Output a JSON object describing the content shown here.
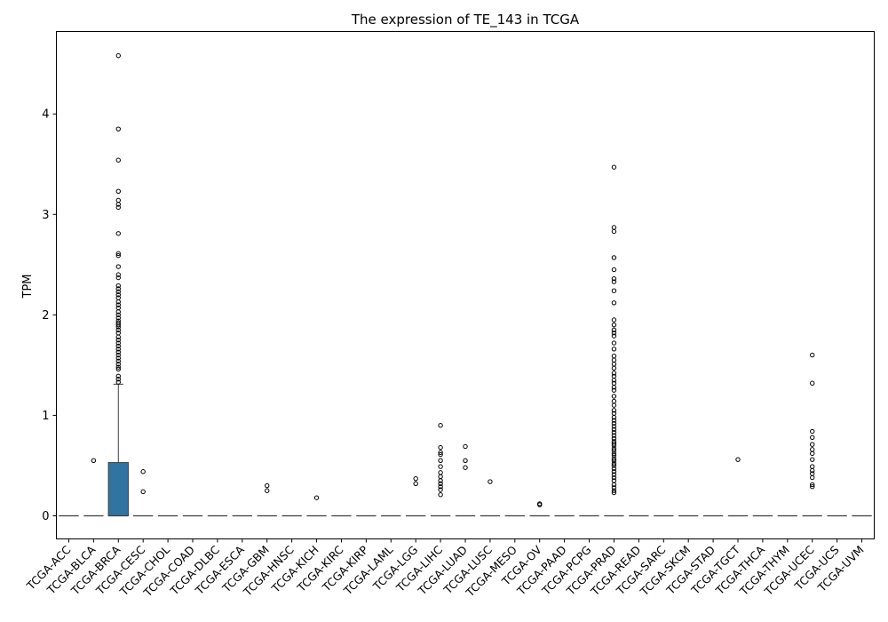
{
  "chart_data": {
    "type": "box",
    "title": "The expression of TE_143 in TCGA",
    "xlabel": "",
    "ylabel": "TPM",
    "ylim": [
      -0.23,
      4.82
    ],
    "yticks": [
      0,
      1,
      2,
      3,
      4
    ],
    "grid": false,
    "box_color": "#3274a1",
    "categories": [
      "TCGA-ACC",
      "TCGA-BLCA",
      "TCGA-BRCA",
      "TCGA-CESC",
      "TCGA-CHOL",
      "TCGA-COAD",
      "TCGA-DLBC",
      "TCGA-ESCA",
      "TCGA-GBM",
      "TCGA-HNSC",
      "TCGA-KICH",
      "TCGA-KIRC",
      "TCGA-KIRP",
      "TCGA-LAML",
      "TCGA-LGG",
      "TCGA-LIHC",
      "TCGA-LUAD",
      "TCGA-LUSC",
      "TCGA-MESO",
      "TCGA-OV",
      "TCGA-PAAD",
      "TCGA-PCPG",
      "TCGA-PRAD",
      "TCGA-READ",
      "TCGA-SARC",
      "TCGA-SKCM",
      "TCGA-STAD",
      "TCGA-TGCT",
      "TCGA-THCA",
      "TCGA-THYM",
      "TCGA-UCEC",
      "TCGA-UCS",
      "TCGA-UVM"
    ],
    "boxes": [
      {
        "q1": 0,
        "median": 0,
        "q3": 0,
        "whisker_low": 0,
        "whisker_high": 0,
        "outliers": []
      },
      {
        "q1": 0,
        "median": 0,
        "q3": 0,
        "whisker_low": 0,
        "whisker_high": 0,
        "outliers": [
          0.55
        ]
      },
      {
        "q1": 0,
        "median": 0,
        "q3": 0.53,
        "whisker_low": 0,
        "whisker_high": 1.31,
        "outliers": [
          4.58,
          3.85,
          3.54,
          3.23,
          3.14,
          3.1,
          3.07,
          2.81,
          2.61,
          2.59,
          2.48,
          2.4,
          2.37,
          2.29,
          2.26,
          2.23,
          2.2,
          2.17,
          2.13,
          2.1,
          2.07,
          2.03,
          2.0,
          1.97,
          1.94,
          1.92,
          1.9,
          1.88,
          1.85,
          1.82,
          1.78,
          1.75,
          1.72,
          1.69,
          1.66,
          1.63,
          1.6,
          1.57,
          1.54,
          1.51,
          1.48,
          1.46,
          1.39,
          1.36,
          1.33
        ]
      },
      {
        "q1": 0,
        "median": 0,
        "q3": 0,
        "whisker_low": 0,
        "whisker_high": 0,
        "outliers": [
          0.44,
          0.24
        ]
      },
      {
        "q1": 0,
        "median": 0,
        "q3": 0,
        "whisker_low": 0,
        "whisker_high": 0,
        "outliers": []
      },
      {
        "q1": 0,
        "median": 0,
        "q3": 0,
        "whisker_low": 0,
        "whisker_high": 0,
        "outliers": []
      },
      {
        "q1": 0,
        "median": 0,
        "q3": 0,
        "whisker_low": 0,
        "whisker_high": 0,
        "outliers": []
      },
      {
        "q1": 0,
        "median": 0,
        "q3": 0,
        "whisker_low": 0,
        "whisker_high": 0,
        "outliers": []
      },
      {
        "q1": 0,
        "median": 0,
        "q3": 0,
        "whisker_low": 0,
        "whisker_high": 0,
        "outliers": [
          0.3,
          0.25
        ]
      },
      {
        "q1": 0,
        "median": 0,
        "q3": 0,
        "whisker_low": 0,
        "whisker_high": 0,
        "outliers": []
      },
      {
        "q1": 0,
        "median": 0,
        "q3": 0,
        "whisker_low": 0,
        "whisker_high": 0,
        "outliers": [
          0.18
        ]
      },
      {
        "q1": 0,
        "median": 0,
        "q3": 0,
        "whisker_low": 0,
        "whisker_high": 0,
        "outliers": []
      },
      {
        "q1": 0,
        "median": 0,
        "q3": 0,
        "whisker_low": 0,
        "whisker_high": 0,
        "outliers": []
      },
      {
        "q1": 0,
        "median": 0,
        "q3": 0,
        "whisker_low": 0,
        "whisker_high": 0,
        "outliers": []
      },
      {
        "q1": 0,
        "median": 0,
        "q3": 0,
        "whisker_low": 0,
        "whisker_high": 0,
        "outliers": [
          0.37,
          0.32
        ]
      },
      {
        "q1": 0,
        "median": 0,
        "q3": 0,
        "whisker_low": 0,
        "whisker_high": 0,
        "outliers": [
          0.9,
          0.68,
          0.63,
          0.61,
          0.55,
          0.49,
          0.43,
          0.39,
          0.35,
          0.32,
          0.29,
          0.26,
          0.21
        ]
      },
      {
        "q1": 0,
        "median": 0,
        "q3": 0,
        "whisker_low": 0,
        "whisker_high": 0,
        "outliers": [
          0.69,
          0.55,
          0.48
        ]
      },
      {
        "q1": 0,
        "median": 0,
        "q3": 0,
        "whisker_low": 0,
        "whisker_high": 0,
        "outliers": [
          0.34
        ]
      },
      {
        "q1": 0,
        "median": 0,
        "q3": 0,
        "whisker_low": 0,
        "whisker_high": 0,
        "outliers": []
      },
      {
        "q1": 0,
        "median": 0,
        "q3": 0,
        "whisker_low": 0,
        "whisker_high": 0,
        "outliers": [
          0.12,
          0.11
        ]
      },
      {
        "q1": 0,
        "median": 0,
        "q3": 0,
        "whisker_low": 0,
        "whisker_high": 0,
        "outliers": []
      },
      {
        "q1": 0,
        "median": 0,
        "q3": 0,
        "whisker_low": 0,
        "whisker_high": 0,
        "outliers": []
      },
      {
        "q1": 0,
        "median": 0,
        "q3": 0,
        "whisker_low": 0,
        "whisker_high": 0,
        "outliers": [
          3.47,
          2.87,
          2.83,
          2.57,
          2.45,
          2.36,
          2.33,
          2.24,
          2.12,
          1.95,
          1.9,
          1.85,
          1.82,
          1.79,
          1.72,
          1.66,
          1.59,
          1.55,
          1.51,
          1.47,
          1.42,
          1.39,
          1.35,
          1.32,
          1.28,
          1.25,
          1.19,
          1.14,
          1.1,
          1.05,
          1.02,
          0.98,
          0.95,
          0.92,
          0.89,
          0.86,
          0.83,
          0.8,
          0.77,
          0.74,
          0.72,
          0.7,
          0.67,
          0.65,
          0.62,
          0.6,
          0.57,
          0.55,
          0.52,
          0.5,
          0.47,
          0.44,
          0.41,
          0.38,
          0.35,
          0.31,
          0.28,
          0.25,
          0.23
        ]
      },
      {
        "q1": 0,
        "median": 0,
        "q3": 0,
        "whisker_low": 0,
        "whisker_high": 0,
        "outliers": []
      },
      {
        "q1": 0,
        "median": 0,
        "q3": 0,
        "whisker_low": 0,
        "whisker_high": 0,
        "outliers": []
      },
      {
        "q1": 0,
        "median": 0,
        "q3": 0,
        "whisker_low": 0,
        "whisker_high": 0,
        "outliers": []
      },
      {
        "q1": 0,
        "median": 0,
        "q3": 0,
        "whisker_low": 0,
        "whisker_high": 0,
        "outliers": []
      },
      {
        "q1": 0,
        "median": 0,
        "q3": 0,
        "whisker_low": 0,
        "whisker_high": 0,
        "outliers": [
          0.56
        ]
      },
      {
        "q1": 0,
        "median": 0,
        "q3": 0,
        "whisker_low": 0,
        "whisker_high": 0,
        "outliers": []
      },
      {
        "q1": 0,
        "median": 0,
        "q3": 0,
        "whisker_low": 0,
        "whisker_high": 0,
        "outliers": []
      },
      {
        "q1": 0,
        "median": 0,
        "q3": 0,
        "whisker_low": 0,
        "whisker_high": 0,
        "outliers": [
          1.6,
          1.32,
          0.84,
          0.78,
          0.71,
          0.66,
          0.62,
          0.56,
          0.49,
          0.45,
          0.42,
          0.38,
          0.31,
          0.29
        ]
      },
      {
        "q1": 0,
        "median": 0,
        "q3": 0,
        "whisker_low": 0,
        "whisker_high": 0,
        "outliers": []
      },
      {
        "q1": 0,
        "median": 0,
        "q3": 0,
        "whisker_low": 0,
        "whisker_high": 0,
        "outliers": []
      }
    ]
  }
}
